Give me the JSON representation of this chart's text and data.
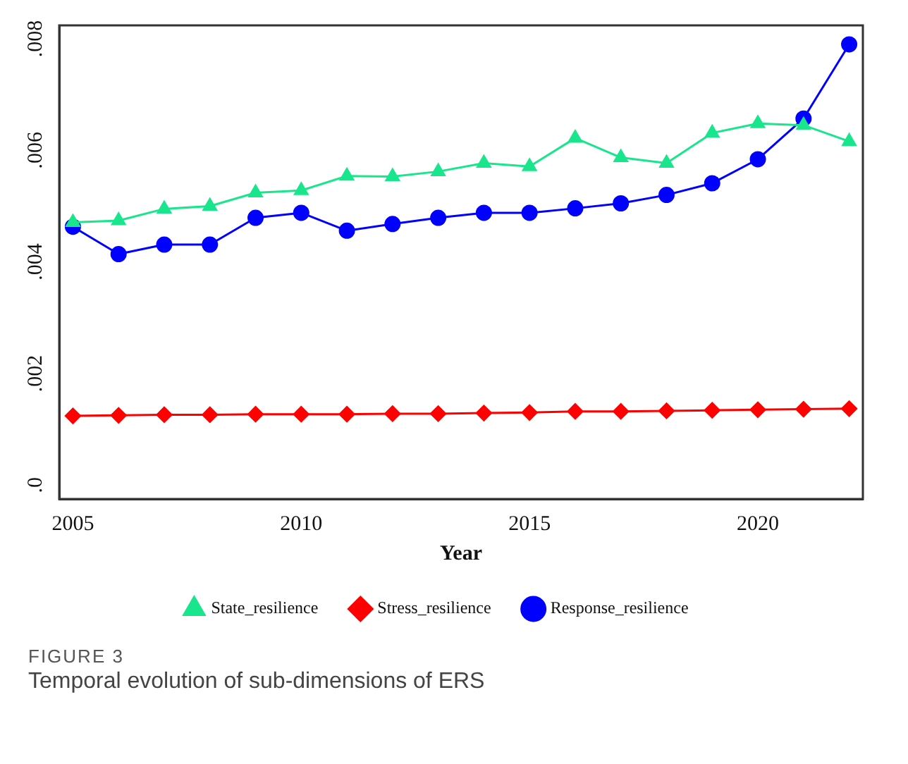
{
  "chart_data": {
    "type": "line",
    "xlabel": "Year",
    "annotations": [
      "FIGURE 3",
      "Temporal evolution of sub-dimensions of ERS"
    ],
    "x": [
      2005,
      2006,
      2007,
      2008,
      2009,
      2010,
      2011,
      2012,
      2013,
      2014,
      2015,
      2016,
      2017,
      2018,
      2019,
      2020,
      2021,
      2022
    ],
    "xlim": [
      2004.7,
      2022.3
    ],
    "xticks": [
      2005,
      2010,
      2015,
      2020
    ],
    "ylim": [
      -0.00025,
      0.00824
    ],
    "yticks": [
      {
        "value": 0,
        "label": ".0"
      },
      {
        "value": 0.002,
        "label": ".002"
      },
      {
        "value": 0.004,
        "label": ".004"
      },
      {
        "value": 0.006,
        "label": ".006"
      },
      {
        "value": 0.008,
        "label": ".008"
      }
    ],
    "grid": false,
    "legend": "bottom",
    "line_style": "solid",
    "series": [
      {
        "name": "State_resilience",
        "color": "#19e68c",
        "marker": "triangle",
        "values": [
          0.00471,
          0.00474,
          0.00495,
          0.005,
          0.00524,
          0.00528,
          0.00554,
          0.00553,
          0.00562,
          0.00577,
          0.00571,
          0.00622,
          0.00587,
          0.00577,
          0.00631,
          0.00648,
          0.00645,
          0.00616
        ]
      },
      {
        "name": "Stress_resilience",
        "color": "#ff0000",
        "marker": "diamond",
        "values": [
          0.00124,
          0.00125,
          0.00126,
          0.00126,
          0.00127,
          0.00127,
          0.00127,
          0.00128,
          0.00128,
          0.00129,
          0.0013,
          0.00132,
          0.00132,
          0.00133,
          0.00134,
          0.00135,
          0.00136,
          0.00137
        ]
      },
      {
        "name": "Response_resilience",
        "color": "#0000ff",
        "marker": "circle",
        "values": [
          0.00463,
          0.00414,
          0.00431,
          0.00431,
          0.00479,
          0.00488,
          0.00456,
          0.00468,
          0.00479,
          0.00488,
          0.00488,
          0.00496,
          0.00505,
          0.0052,
          0.00541,
          0.00584,
          0.00657,
          0.0079
        ]
      }
    ]
  }
}
